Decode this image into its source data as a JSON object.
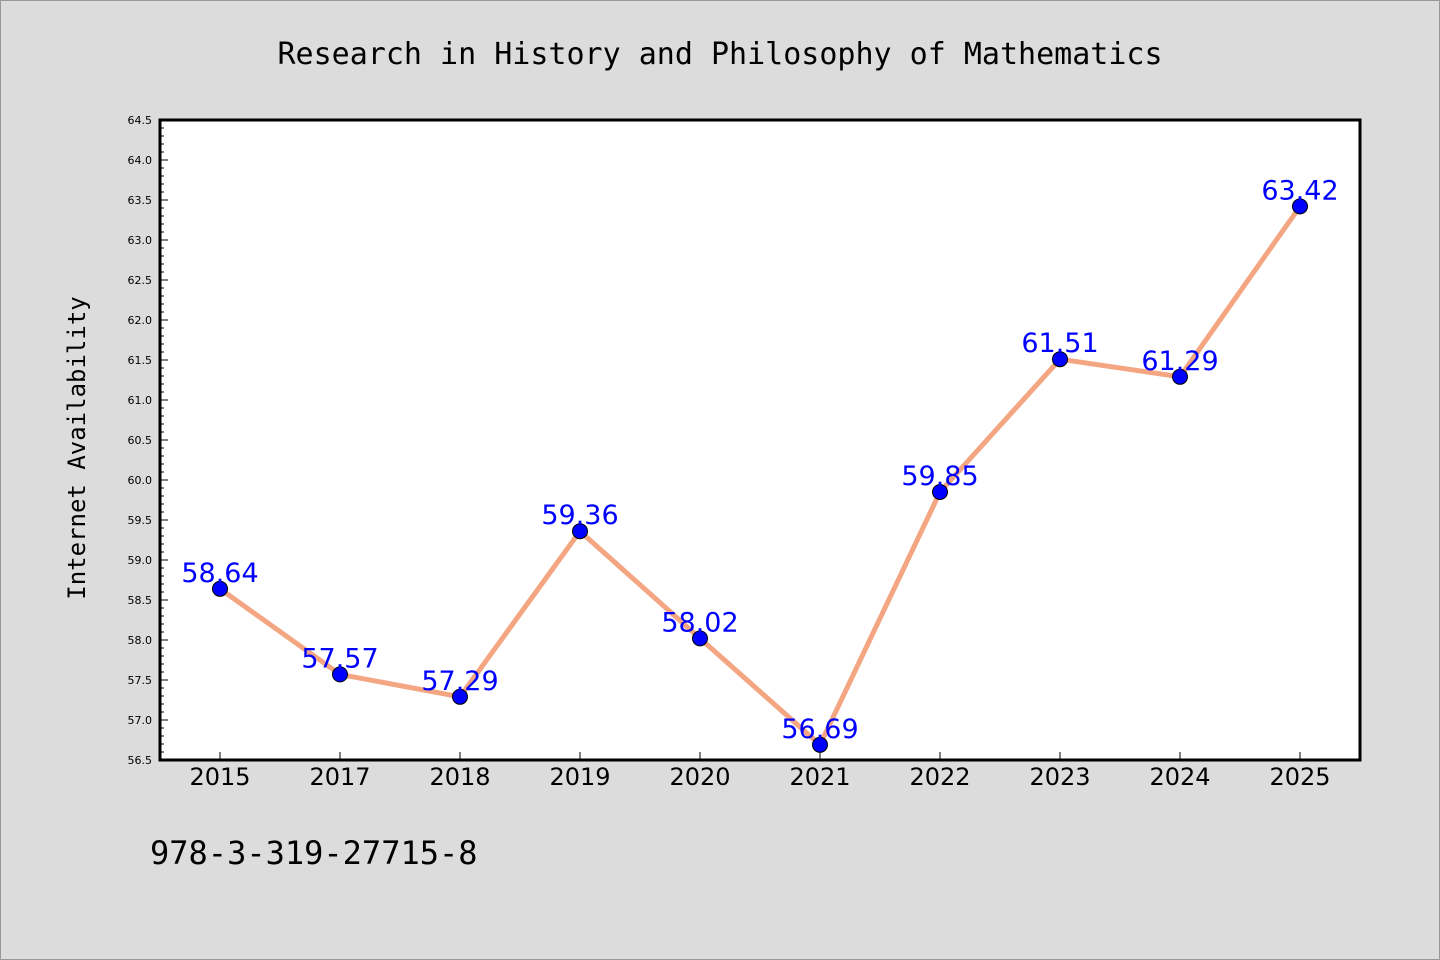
{
  "footer_code": "978-3-319-27715-8",
  "chart_data": {
    "type": "line",
    "title": "Research in History and Philosophy of Mathematics",
    "xlabel": "",
    "ylabel": "Internet Availability",
    "categories": [
      "2015",
      "2017",
      "2018",
      "2019",
      "2020",
      "2021",
      "2022",
      "2023",
      "2024",
      "2025"
    ],
    "values": [
      58.64,
      57.57,
      57.29,
      59.36,
      58.02,
      56.69,
      59.85,
      61.51,
      61.29,
      63.42
    ],
    "data_labels": [
      "58.64",
      "57.57",
      "57.29",
      "59.36",
      "58.02",
      "56.69",
      "59.85",
      "61.51",
      "61.29",
      "63.42"
    ],
    "ylim": [
      56.5,
      64.5
    ],
    "yticks": [
      "56.5",
      "57.0",
      "57.5",
      "58.0",
      "58.5",
      "59.0",
      "59.5",
      "60.0",
      "60.5",
      "61.0",
      "61.5",
      "62.0",
      "62.5",
      "63.0",
      "63.5",
      "64.0",
      "64.5"
    ],
    "grid": false,
    "legend": "none",
    "colors": {
      "background": "#dcdcdc",
      "plot_background": "#ffffff",
      "line": "#f4a582",
      "marker": "#0000ff",
      "data_label": "#0000ff"
    }
  }
}
